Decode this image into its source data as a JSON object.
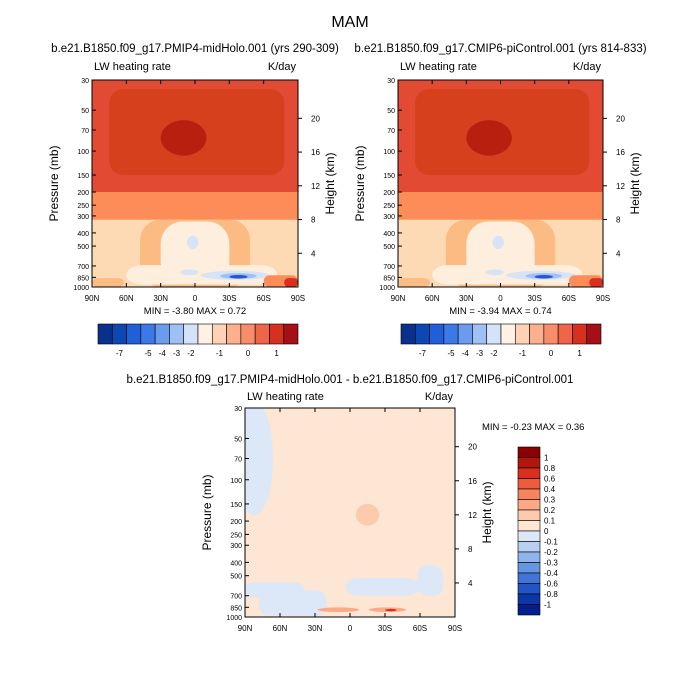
{
  "title": "MAM",
  "units": "K/day",
  "variable": "LW heating rate",
  "colors": {
    "red_dark": "#a50f15",
    "red": "#e34a33",
    "orange": "#fc8d59",
    "salmon": "#fdbb84",
    "peach": "#fdd9b4",
    "cream": "#feeede",
    "light_blue": "#d6e4f5",
    "blue": "#6fa0e0",
    "blue_dark": "#2b55c8"
  },
  "chart_data": [
    {
      "type": "heatmap",
      "id": "panel-left",
      "title": "b.e21.B1850.f09_g17.PMIP4-midHolo.001 (yrs 290-309)",
      "left_label": "LW heating rate",
      "right_label": "K/day",
      "xlabel": "",
      "ylabel": "Pressure (mb)",
      "ylabel_right": "Height (km)",
      "x_ticks": [
        "90N",
        "60N",
        "30N",
        "0",
        "30S",
        "60S",
        "90S"
      ],
      "y_ticks": [
        "30",
        "50",
        "70",
        "100",
        "150",
        "200",
        "250",
        "300",
        "400",
        "500",
        "700",
        "850",
        "1000"
      ],
      "y_ticks_right": [
        "20",
        "16",
        "12",
        "8",
        "4"
      ],
      "min_label": "MIN =  -3.80   MAX =   0.72",
      "colorbar_labels": [
        "-7",
        "-5",
        "-4",
        "-3",
        "-2",
        "-1",
        "0",
        "1"
      ],
      "colorbar_colors": [
        "#08308c",
        "#0c47b4",
        "#1f5fd8",
        "#3c79e8",
        "#6b9bef",
        "#9ec0f5",
        "#d4e3f8",
        "#fff1e3",
        "#fdd2b6",
        "#fcb08e",
        "#f98d6a",
        "#ef6548",
        "#d7301f",
        "#a50f15"
      ],
      "ylim": [
        1000,
        30
      ],
      "xlim": [
        "90N",
        "90S"
      ]
    },
    {
      "type": "heatmap",
      "id": "panel-right",
      "title": "b.e21.B1850.f09_g17.CMIP6-piControl.001 (yrs 814-833)",
      "left_label": "LW heating rate",
      "right_label": "K/day",
      "xlabel": "",
      "ylabel": "Pressure (mb)",
      "ylabel_right": "Height (km)",
      "x_ticks": [
        "90N",
        "60N",
        "30N",
        "0",
        "30S",
        "60S",
        "90S"
      ],
      "y_ticks": [
        "30",
        "50",
        "70",
        "100",
        "150",
        "200",
        "250",
        "300",
        "400",
        "500",
        "700",
        "850",
        "1000"
      ],
      "y_ticks_right": [
        "20",
        "16",
        "12",
        "8",
        "4"
      ],
      "min_label": "MIN =  -3.94   MAX =   0.74",
      "colorbar_labels": [
        "-7",
        "-5",
        "-4",
        "-3",
        "-2",
        "-1",
        "0",
        "1"
      ],
      "colorbar_colors": [
        "#08308c",
        "#0c47b4",
        "#1f5fd8",
        "#3c79e8",
        "#6b9bef",
        "#9ec0f5",
        "#d4e3f8",
        "#fff1e3",
        "#fdd2b6",
        "#fcb08e",
        "#f98d6a",
        "#ef6548",
        "#d7301f",
        "#a50f15"
      ],
      "ylim": [
        1000,
        30
      ],
      "xlim": [
        "90N",
        "90S"
      ]
    },
    {
      "type": "heatmap",
      "id": "panel-diff",
      "title": "b.e21.B1850.f09_g17.PMIP4-midHolo.001 - b.e21.B1850.f09_g17.CMIP6-piControl.001",
      "left_label": "LW heating rate",
      "right_label": "K/day",
      "xlabel": "",
      "ylabel": "Pressure (mb)",
      "ylabel_right": "Height (km)",
      "x_ticks": [
        "90N",
        "60N",
        "30N",
        "0",
        "30S",
        "60S",
        "90S"
      ],
      "y_ticks": [
        "30",
        "50",
        "70",
        "100",
        "150",
        "200",
        "250",
        "300",
        "400",
        "500",
        "700",
        "850",
        "1000"
      ],
      "y_ticks_right": [
        "20",
        "16",
        "12",
        "8",
        "4"
      ],
      "min_label": "MIN =  -0.23   MAX =   0.36",
      "colorbar_labels": [
        "1",
        "0.8",
        "0.6",
        "0.4",
        "0.3",
        "0.2",
        "0.1",
        "0",
        "-0.1",
        "-0.2",
        "-0.3",
        "-0.4",
        "-0.6",
        "-0.8",
        "-1"
      ],
      "colorbar_colors": [
        "#8b0000",
        "#b3160d",
        "#d7301f",
        "#ef5b3c",
        "#f7845f",
        "#fba987",
        "#fdcaad",
        "#fde6d3",
        "#dce8f7",
        "#b7d0f2",
        "#8fb5ec",
        "#6596e2",
        "#3e75d6",
        "#1f55c4",
        "#0c37a8",
        "#021f8c"
      ],
      "ylim": [
        1000,
        30
      ],
      "xlim": [
        "90N",
        "90S"
      ]
    }
  ]
}
